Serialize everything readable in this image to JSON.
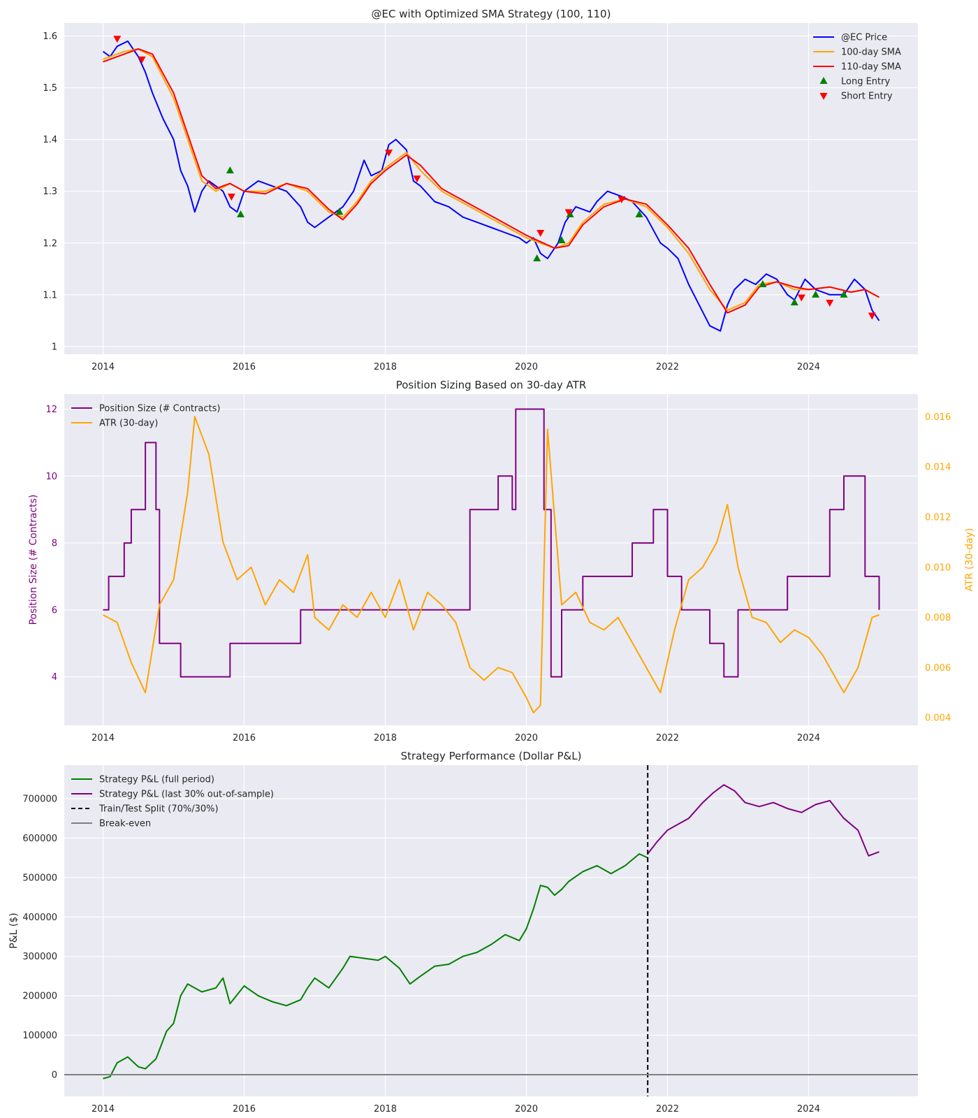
{
  "chart_data": [
    {
      "type": "line",
      "title": "@EC with Optimized SMA Strategy (100, 110)",
      "xlabel": "",
      "ylabel": "",
      "xlim": [
        2013.45,
        2025.55
      ],
      "ylim": [
        0.985,
        1.625
      ],
      "xticks": [
        2014,
        2016,
        2018,
        2020,
        2022,
        2024
      ],
      "yticks": [
        1.0,
        1.1,
        1.2,
        1.3,
        1.4,
        1.5,
        1.6
      ],
      "grid": true,
      "legend_position": "top-right",
      "series": [
        {
          "name": "@EC Price",
          "kind": "line",
          "color": "#0000ff",
          "x": [
            2014.0,
            2014.1,
            2014.2,
            2014.35,
            2014.5,
            2014.6,
            2014.7,
            2014.85,
            2015.0,
            2015.1,
            2015.2,
            2015.3,
            2015.4,
            2015.5,
            2015.6,
            2015.7,
            2015.8,
            2015.9,
            2016.0,
            2016.2,
            2016.4,
            2016.6,
            2016.8,
            2016.9,
            2017.0,
            2017.2,
            2017.4,
            2017.55,
            2017.7,
            2017.8,
            2017.95,
            2018.05,
            2018.15,
            2018.3,
            2018.4,
            2018.5,
            2018.7,
            2018.9,
            2019.1,
            2019.3,
            2019.5,
            2019.7,
            2019.9,
            2020.0,
            2020.1,
            2020.2,
            2020.3,
            2020.45,
            2020.55,
            2020.7,
            2020.9,
            2021.0,
            2021.15,
            2021.35,
            2021.5,
            2021.7,
            2021.9,
            2022.0,
            2022.15,
            2022.3,
            2022.45,
            2022.6,
            2022.75,
            2022.85,
            2022.95,
            2023.1,
            2023.25,
            2023.4,
            2023.55,
            2023.7,
            2023.8,
            2023.95,
            2024.1,
            2024.3,
            2024.5,
            2024.65,
            2024.8,
            2024.9,
            2025.0
          ],
          "y": [
            1.57,
            1.56,
            1.58,
            1.59,
            1.56,
            1.53,
            1.49,
            1.44,
            1.4,
            1.34,
            1.31,
            1.26,
            1.3,
            1.32,
            1.31,
            1.3,
            1.27,
            1.26,
            1.3,
            1.32,
            1.31,
            1.3,
            1.27,
            1.24,
            1.23,
            1.25,
            1.27,
            1.3,
            1.36,
            1.33,
            1.34,
            1.39,
            1.4,
            1.38,
            1.32,
            1.31,
            1.28,
            1.27,
            1.25,
            1.24,
            1.23,
            1.22,
            1.21,
            1.2,
            1.21,
            1.18,
            1.17,
            1.2,
            1.24,
            1.27,
            1.26,
            1.28,
            1.3,
            1.29,
            1.28,
            1.25,
            1.2,
            1.19,
            1.17,
            1.12,
            1.08,
            1.04,
            1.03,
            1.08,
            1.11,
            1.13,
            1.12,
            1.14,
            1.13,
            1.1,
            1.09,
            1.13,
            1.11,
            1.1,
            1.1,
            1.13,
            1.11,
            1.07,
            1.05
          ]
        },
        {
          "name": "100-day SMA",
          "kind": "line",
          "color": "#ffa500",
          "x": [
            2014.0,
            2014.3,
            2014.5,
            2014.7,
            2015.0,
            2015.2,
            2015.4,
            2015.6,
            2015.8,
            2016.0,
            2016.3,
            2016.6,
            2016.9,
            2017.2,
            2017.4,
            2017.6,
            2017.8,
            2018.0,
            2018.3,
            2018.5,
            2018.8,
            2019.2,
            2019.6,
            2020.0,
            2020.4,
            2020.6,
            2020.8,
            2021.1,
            2021.4,
            2021.7,
            2022.0,
            2022.3,
            2022.6,
            2022.85,
            2023.1,
            2023.3,
            2023.55,
            2023.8,
            2024.0,
            2024.3,
            2024.6,
            2024.8,
            2025.0
          ],
          "y": [
            1.555,
            1.57,
            1.575,
            1.56,
            1.48,
            1.4,
            1.32,
            1.3,
            1.315,
            1.3,
            1.3,
            1.315,
            1.3,
            1.26,
            1.25,
            1.28,
            1.32,
            1.345,
            1.375,
            1.34,
            1.3,
            1.27,
            1.24,
            1.21,
            1.19,
            1.2,
            1.24,
            1.275,
            1.285,
            1.27,
            1.23,
            1.18,
            1.11,
            1.07,
            1.085,
            1.12,
            1.125,
            1.11,
            1.11,
            1.115,
            1.105,
            1.11,
            1.095
          ]
        },
        {
          "name": "110-day SMA",
          "kind": "line",
          "color": "#ff0000",
          "x": [
            2014.0,
            2014.3,
            2014.5,
            2014.7,
            2015.0,
            2015.2,
            2015.4,
            2015.6,
            2015.8,
            2016.0,
            2016.3,
            2016.6,
            2016.9,
            2017.2,
            2017.4,
            2017.6,
            2017.8,
            2018.0,
            2018.3,
            2018.5,
            2018.8,
            2019.2,
            2019.6,
            2020.0,
            2020.4,
            2020.6,
            2020.8,
            2021.1,
            2021.4,
            2021.7,
            2022.0,
            2022.3,
            2022.6,
            2022.85,
            2023.1,
            2023.3,
            2023.55,
            2023.8,
            2024.0,
            2024.3,
            2024.6,
            2024.8,
            2025.0
          ],
          "y": [
            1.55,
            1.565,
            1.575,
            1.565,
            1.49,
            1.41,
            1.33,
            1.305,
            1.315,
            1.3,
            1.295,
            1.315,
            1.305,
            1.265,
            1.245,
            1.275,
            1.315,
            1.34,
            1.37,
            1.35,
            1.305,
            1.275,
            1.245,
            1.215,
            1.19,
            1.195,
            1.235,
            1.27,
            1.285,
            1.275,
            1.235,
            1.19,
            1.12,
            1.065,
            1.08,
            1.115,
            1.125,
            1.115,
            1.11,
            1.115,
            1.105,
            1.11,
            1.095
          ]
        },
        {
          "name": "Long Entry",
          "kind": "marker",
          "marker": "triangle-up",
          "color": "#008000",
          "x": [
            2015.8,
            2015.95,
            2017.35,
            2020.15,
            2020.5,
            2020.62,
            2021.6,
            2023.35,
            2023.8,
            2024.1,
            2024.5
          ],
          "y": [
            1.34,
            1.255,
            1.26,
            1.17,
            1.205,
            1.255,
            1.255,
            1.12,
            1.085,
            1.1,
            1.1
          ]
        },
        {
          "name": "Short Entry",
          "kind": "marker",
          "marker": "triangle-down",
          "color": "#ff0000",
          "x": [
            2014.2,
            2014.55,
            2015.82,
            2018.05,
            2018.45,
            2020.2,
            2020.6,
            2021.35,
            2023.9,
            2024.3,
            2024.9
          ],
          "y": [
            1.595,
            1.555,
            1.29,
            1.375,
            1.325,
            1.22,
            1.26,
            1.285,
            1.095,
            1.085,
            1.06
          ]
        }
      ]
    },
    {
      "type": "line",
      "title": "Position Sizing Based on 30-day ATR",
      "xlabel": "",
      "ylabel": "Position Size (# Contracts)",
      "ylabel_right": "ATR (30-day)",
      "xlim": [
        2013.45,
        2025.55
      ],
      "ylim": [
        2.55,
        12.45
      ],
      "ylim_right": [
        0.0037,
        0.0169
      ],
      "xticks": [
        2014,
        2016,
        2018,
        2020,
        2022,
        2024
      ],
      "yticks": [
        4,
        6,
        8,
        10,
        12
      ],
      "yticks_right": [
        0.004,
        0.006,
        0.008,
        0.01,
        0.012,
        0.014,
        0.016
      ],
      "grid": true,
      "legend_position": "top-left",
      "series": [
        {
          "name": "Position Size (# Contracts)",
          "axis": "left",
          "color": "#800080",
          "step": true,
          "x": [
            2014.0,
            2014.08,
            2014.3,
            2014.4,
            2014.6,
            2014.75,
            2014.8,
            2015.1,
            2015.3,
            2015.6,
            2015.8,
            2016.3,
            2016.8,
            2017.2,
            2017.6,
            2018.0,
            2018.5,
            2019.0,
            2019.2,
            2019.4,
            2019.6,
            2019.8,
            2019.85,
            2020.25,
            2020.35,
            2020.5,
            2020.8,
            2021.5,
            2021.8,
            2022.0,
            2022.2,
            2022.6,
            2022.8,
            2023.0,
            2023.3,
            2023.7,
            2024.1,
            2024.3,
            2024.5,
            2024.8,
            2025.0
          ],
          "y": [
            6,
            7,
            8,
            9,
            11,
            9,
            5,
            4,
            4,
            4,
            5,
            5,
            6,
            6,
            6,
            6,
            6,
            6,
            9,
            9,
            10,
            9,
            12,
            9,
            4,
            6,
            7,
            8,
            9,
            7,
            6,
            5,
            4,
            6,
            6,
            7,
            7,
            9,
            10,
            7,
            6
          ]
        },
        {
          "name": "ATR (30-day)",
          "axis": "right",
          "color": "#ffa500",
          "x": [
            2014.0,
            2014.2,
            2014.4,
            2014.6,
            2014.8,
            2015.0,
            2015.2,
            2015.3,
            2015.5,
            2015.7,
            2015.9,
            2016.1,
            2016.3,
            2016.5,
            2016.7,
            2016.9,
            2017.0,
            2017.2,
            2017.4,
            2017.6,
            2017.8,
            2018.0,
            2018.2,
            2018.4,
            2018.6,
            2018.8,
            2019.0,
            2019.2,
            2019.4,
            2019.6,
            2019.8,
            2020.0,
            2020.1,
            2020.2,
            2020.3,
            2020.5,
            2020.7,
            2020.9,
            2021.1,
            2021.3,
            2021.5,
            2021.7,
            2021.9,
            2022.1,
            2022.3,
            2022.5,
            2022.7,
            2022.85,
            2023.0,
            2023.2,
            2023.4,
            2023.6,
            2023.8,
            2024.0,
            2024.2,
            2024.4,
            2024.5,
            2024.7,
            2024.9,
            2025.0
          ],
          "y": [
            0.0081,
            0.0078,
            0.0062,
            0.005,
            0.0085,
            0.0095,
            0.013,
            0.016,
            0.0145,
            0.011,
            0.0095,
            0.01,
            0.0085,
            0.0095,
            0.009,
            0.0105,
            0.008,
            0.0075,
            0.0085,
            0.008,
            0.009,
            0.008,
            0.0095,
            0.0075,
            0.009,
            0.0085,
            0.0078,
            0.006,
            0.0055,
            0.006,
            0.0058,
            0.0048,
            0.0042,
            0.0045,
            0.0155,
            0.0085,
            0.009,
            0.0078,
            0.0075,
            0.008,
            0.007,
            0.006,
            0.005,
            0.0075,
            0.0095,
            0.01,
            0.011,
            0.0125,
            0.01,
            0.008,
            0.0078,
            0.007,
            0.0075,
            0.0072,
            0.0065,
            0.0055,
            0.005,
            0.006,
            0.008,
            0.0081
          ]
        }
      ]
    },
    {
      "type": "line",
      "title": "Strategy Performance (Dollar P&L)",
      "xlabel": "",
      "ylabel": "P&L ($)",
      "xlim": [
        2013.45,
        2025.55
      ],
      "ylim": [
        -55000,
        785000
      ],
      "xticks": [
        2014,
        2016,
        2018,
        2020,
        2022,
        2024
      ],
      "yticks": [
        0,
        100000,
        200000,
        300000,
        400000,
        500000,
        600000,
        700000
      ],
      "grid": true,
      "legend_position": "top-left",
      "series": [
        {
          "name": "Strategy P&L (full period)",
          "color": "#008000",
          "x": [
            2014.0,
            2014.1,
            2014.2,
            2014.35,
            2014.5,
            2014.6,
            2014.75,
            2014.9,
            2015.0,
            2015.1,
            2015.2,
            2015.4,
            2015.6,
            2015.7,
            2015.8,
            2016.0,
            2016.2,
            2016.4,
            2016.6,
            2016.8,
            2016.9,
            2017.0,
            2017.2,
            2017.4,
            2017.5,
            2017.7,
            2017.9,
            2018.0,
            2018.2,
            2018.35,
            2018.5,
            2018.7,
            2018.9,
            2019.1,
            2019.3,
            2019.5,
            2019.7,
            2019.9,
            2020.0,
            2020.1,
            2020.2,
            2020.3,
            2020.4,
            2020.5,
            2020.6,
            2020.8,
            2021.0,
            2021.2,
            2021.4,
            2021.6,
            2021.72
          ],
          "y": [
            -10000,
            -5000,
            30000,
            45000,
            20000,
            15000,
            40000,
            110000,
            130000,
            200000,
            230000,
            210000,
            220000,
            245000,
            180000,
            225000,
            200000,
            185000,
            175000,
            190000,
            220000,
            245000,
            220000,
            270000,
            300000,
            295000,
            290000,
            300000,
            270000,
            230000,
            250000,
            275000,
            280000,
            300000,
            310000,
            330000,
            355000,
            340000,
            370000,
            420000,
            480000,
            475000,
            455000,
            470000,
            490000,
            515000,
            530000,
            510000,
            530000,
            560000,
            550000
          ]
        },
        {
          "name": "Strategy P&L (last 30% out-of-sample)",
          "color": "#800080",
          "x": [
            2021.72,
            2021.85,
            2022.0,
            2022.15,
            2022.3,
            2022.5,
            2022.65,
            2022.8,
            2022.95,
            2023.1,
            2023.3,
            2023.5,
            2023.7,
            2023.9,
            2024.1,
            2024.3,
            2024.5,
            2024.7,
            2024.85,
            2025.0
          ],
          "y": [
            560000,
            590000,
            620000,
            635000,
            650000,
            690000,
            715000,
            735000,
            720000,
            690000,
            680000,
            690000,
            675000,
            665000,
            685000,
            695000,
            650000,
            620000,
            555000,
            565000
          ]
        },
        {
          "name": "Train/Test Split (70%/30%)",
          "color": "#000000",
          "style": "dashed",
          "kind": "vline",
          "x_value": 2021.72
        },
        {
          "name": "Break-even",
          "color": "#808080",
          "kind": "hline",
          "y_value": 0
        }
      ]
    }
  ]
}
